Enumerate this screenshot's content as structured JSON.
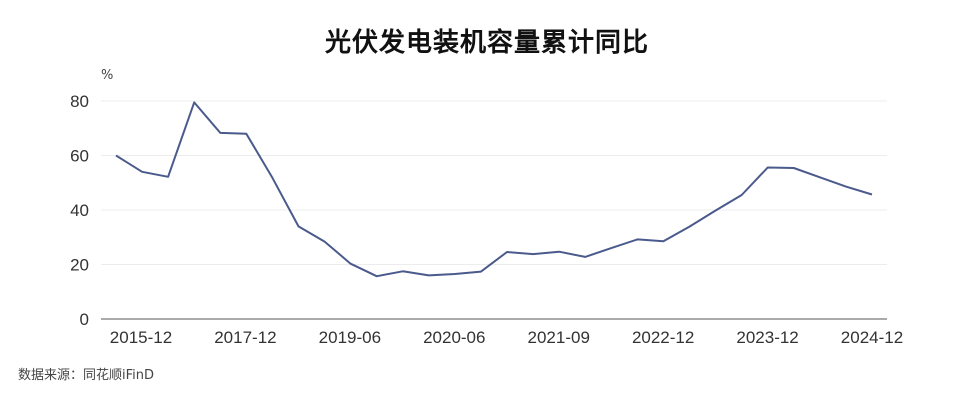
{
  "chart_data": {
    "type": "line",
    "title": "光伏发电装机容量累计同比",
    "ylabel": "%",
    "xlabel": "",
    "ylim": [
      0,
      80
    ],
    "yticks": [
      0,
      20,
      40,
      60,
      80
    ],
    "xticks": [
      "2015-12",
      "2017-12",
      "2019-06",
      "2020-06",
      "2021-09",
      "2022-12",
      "2023-12",
      "2024-12"
    ],
    "grid": true,
    "color": "#4b5a8c",
    "values": [
      60.0,
      54.0,
      52.2,
      79.5,
      68.3,
      68.0,
      51.8,
      34.0,
      28.4,
      20.3,
      15.7,
      17.5,
      16.0,
      16.5,
      17.4,
      24.6,
      23.8,
      24.7,
      22.8,
      26.0,
      29.2,
      28.5,
      33.9,
      39.8,
      45.5,
      55.6,
      55.4,
      52.0,
      48.6,
      45.7
    ]
  },
  "source": "数据来源：同花顺iFinD"
}
